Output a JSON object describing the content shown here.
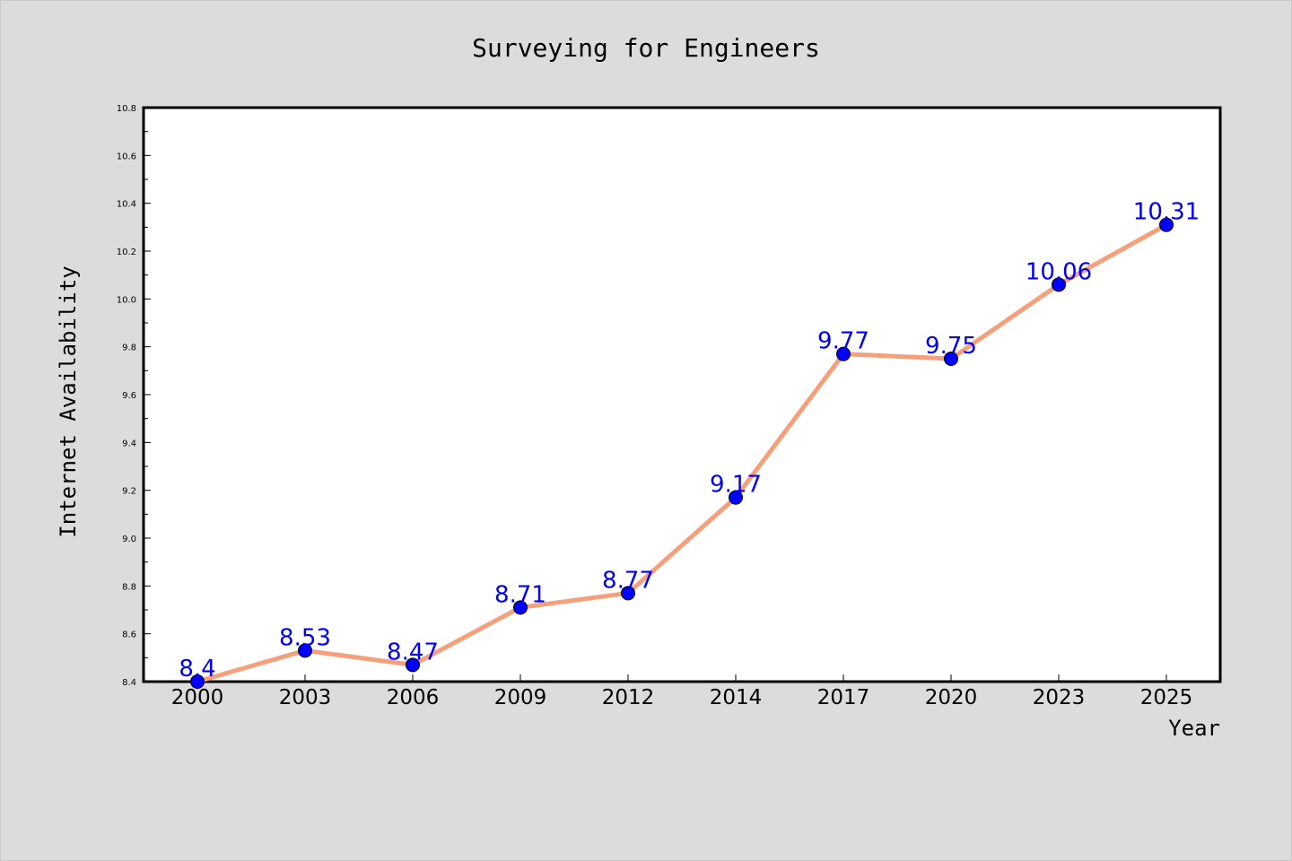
{
  "chart_data": {
    "type": "line",
    "title": "Surveying for Engineers",
    "xlabel": "Year",
    "ylabel": "Internet Availability",
    "categories": [
      "2000",
      "2003",
      "2006",
      "2009",
      "2012",
      "2014",
      "2017",
      "2020",
      "2023",
      "2025"
    ],
    "series": [
      {
        "values": [
          8.4,
          8.53,
          8.47,
          8.71,
          8.77,
          9.17,
          9.77,
          9.75,
          10.06,
          10.31
        ],
        "labels": [
          "8.4",
          "8.53",
          "8.47",
          "8.71",
          "8.77",
          "9.17",
          "9.77",
          "9.75",
          "10.06",
          "10.31"
        ],
        "line_color": "#f5a07a",
        "marker_color": "#0000ff",
        "label_color": "#0000ff"
      }
    ],
    "ylim": [
      8.4,
      10.8
    ],
    "yticks": [
      "8.4",
      "8.6",
      "8.8",
      "9.0",
      "9.2",
      "9.4",
      "9.6",
      "9.8",
      "10.0",
      "10.2",
      "10.4",
      "10.6",
      "10.8"
    ],
    "grid": false,
    "legend": "none",
    "plot_background": "#ffffff",
    "page_background": "#dcdcdc"
  }
}
